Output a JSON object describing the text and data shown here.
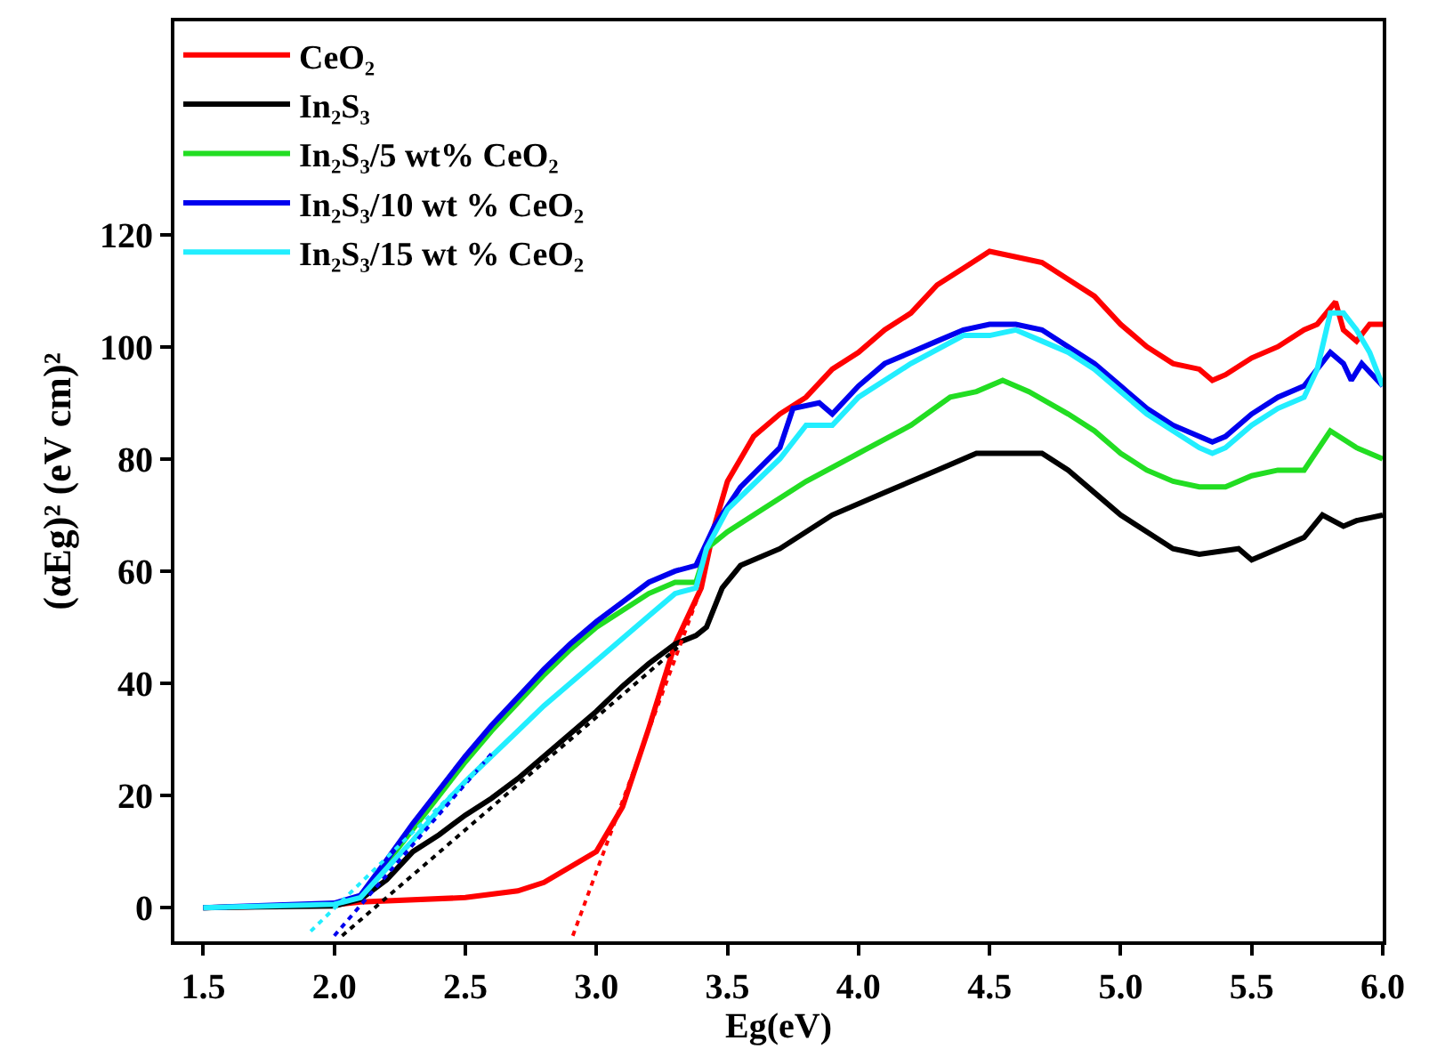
{
  "chart_data": {
    "type": "line",
    "xlabel": "Eg(eV)",
    "ylabel": "(αEg)² (eV cm)²",
    "xlim": [
      1.39,
      6.0
    ],
    "xticks": [
      {
        "value": 1.5,
        "label": "1.5"
      },
      {
        "value": 2.0,
        "label": "2.0"
      },
      {
        "value": 2.5,
        "label": "2.5"
      },
      {
        "value": 3.0,
        "label": "3.0"
      },
      {
        "value": 3.5,
        "label": "3.5"
      },
      {
        "value": 4.0,
        "label": "4.0"
      },
      {
        "value": 4.5,
        "label": "4.5"
      },
      {
        "value": 5.0,
        "label": "5.0"
      },
      {
        "value": 5.5,
        "label": "5.5"
      },
      {
        "value": 6.0,
        "label": "6.0"
      }
    ],
    "ylim": [
      -6,
      158
    ],
    "yticks": [
      0,
      20,
      40,
      60,
      80,
      100,
      120
    ],
    "legend": "top left",
    "marker": "none",
    "line_style": "solid",
    "series": [
      {
        "name": "CeO₂",
        "color": "#ff0000",
        "x": [
          1.5,
          2.0,
          2.1,
          2.5,
          2.7,
          2.8,
          3.0,
          3.1,
          3.2,
          3.3,
          3.4,
          3.45,
          3.5,
          3.6,
          3.7,
          3.8,
          3.9,
          4.0,
          4.1,
          4.2,
          4.3,
          4.4,
          4.5,
          4.6,
          4.7,
          4.8,
          4.9,
          5.0,
          5.1,
          5.2,
          5.3,
          5.35,
          5.4,
          5.5,
          5.6,
          5.7,
          5.75,
          5.82,
          5.85,
          5.9,
          5.95,
          6.0
        ],
        "values": [
          0,
          0.5,
          1,
          1.8,
          3,
          4.5,
          10,
          18,
          32,
          47,
          57,
          68,
          76,
          84,
          88,
          91,
          96,
          99,
          103,
          106,
          111,
          114,
          117,
          116,
          115,
          112,
          109,
          104,
          100,
          97,
          96,
          94,
          95,
          98,
          100,
          103,
          104,
          108,
          103,
          101,
          104,
          104
        ]
      },
      {
        "name": "In₂S₃",
        "color": "#000000",
        "x": [
          1.5,
          2.0,
          2.1,
          2.2,
          2.3,
          2.4,
          2.5,
          2.6,
          2.7,
          2.8,
          2.9,
          3.0,
          3.1,
          3.2,
          3.3,
          3.38,
          3.42,
          3.48,
          3.55,
          3.7,
          3.9,
          4.1,
          4.3,
          4.45,
          4.55,
          4.7,
          4.8,
          4.9,
          5.0,
          5.1,
          5.2,
          5.3,
          5.45,
          5.5,
          5.6,
          5.7,
          5.77,
          5.85,
          5.9,
          6.0
        ],
        "values": [
          0,
          0.3,
          1.5,
          5,
          10,
          13,
          16.5,
          19.5,
          23,
          27,
          31,
          35,
          39.5,
          43.5,
          47,
          48.5,
          50,
          57,
          61,
          64,
          70,
          74,
          78,
          81,
          81,
          81,
          78,
          74,
          70,
          67,
          64,
          63,
          64,
          62,
          64,
          66,
          70,
          68,
          69,
          70
        ]
      },
      {
        "name": "In₂S₃/5 wt% CeO₂",
        "color": "#22dd22",
        "x": [
          2.1,
          2.2,
          2.3,
          2.4,
          2.5,
          2.6,
          2.7,
          2.8,
          2.9,
          3.0,
          3.1,
          3.2,
          3.3,
          3.38,
          3.42,
          3.5,
          3.6,
          3.8,
          4.0,
          4.2,
          4.35,
          4.45,
          4.55,
          4.65,
          4.8,
          4.9,
          5.0,
          5.1,
          5.2,
          5.3,
          5.4,
          5.5,
          5.6,
          5.7,
          5.8,
          5.9,
          6.0
        ],
        "values": [
          2,
          8,
          14,
          20,
          26,
          31.5,
          36.5,
          41.5,
          46,
          50,
          53,
          56,
          58,
          58,
          64,
          67,
          70,
          76,
          81,
          86,
          91,
          92,
          94,
          92,
          88,
          85,
          81,
          78,
          76,
          75,
          75,
          77,
          78,
          78,
          85,
          82,
          80
        ]
      },
      {
        "name": "In₂S₃/10 wt % CeO₂",
        "color": "#0000ee",
        "x": [
          1.5,
          2.0,
          2.1,
          2.2,
          2.3,
          2.4,
          2.5,
          2.6,
          2.7,
          2.8,
          2.9,
          3.0,
          3.1,
          3.2,
          3.3,
          3.38,
          3.45,
          3.55,
          3.7,
          3.75,
          3.85,
          3.9,
          4.0,
          4.1,
          4.2,
          4.3,
          4.4,
          4.5,
          4.6,
          4.7,
          4.8,
          4.9,
          5.0,
          5.1,
          5.2,
          5.3,
          5.35,
          5.4,
          5.5,
          5.6,
          5.7,
          5.8,
          5.85,
          5.88,
          5.92,
          6.0
        ],
        "values": [
          0,
          0.8,
          2.2,
          8.5,
          15,
          21,
          27,
          32.5,
          37.5,
          42.5,
          47,
          51,
          54.5,
          58,
          60,
          61,
          68,
          75,
          82,
          89,
          90,
          88,
          93,
          97,
          99,
          101,
          103,
          104,
          104,
          103,
          100,
          97,
          93,
          89,
          86,
          84,
          83,
          84,
          88,
          91,
          93,
          99,
          97,
          94,
          97,
          93
        ]
      },
      {
        "name": "In₂S₃/15 wt % CeO₂",
        "color": "#22eeff",
        "x": [
          1.5,
          2.0,
          2.1,
          2.2,
          2.3,
          2.4,
          2.5,
          2.6,
          2.7,
          2.8,
          2.9,
          3.0,
          3.1,
          3.2,
          3.3,
          3.38,
          3.42,
          3.5,
          3.7,
          3.8,
          3.9,
          4.0,
          4.2,
          4.4,
          4.5,
          4.6,
          4.7,
          4.8,
          4.9,
          5.0,
          5.1,
          5.2,
          5.3,
          5.35,
          5.4,
          5.5,
          5.6,
          5.7,
          5.75,
          5.8,
          5.85,
          5.9,
          5.95,
          6.0
        ],
        "values": [
          0,
          0.6,
          1.8,
          7,
          12,
          17.5,
          22.5,
          27,
          31.5,
          36,
          40,
          44,
          48,
          52,
          56,
          57,
          64,
          71,
          80,
          86,
          86,
          91,
          97,
          102,
          102,
          103,
          101,
          99,
          96,
          92,
          88,
          85,
          82,
          81,
          82,
          86,
          89,
          91,
          96,
          106,
          106,
          103,
          99,
          93
        ]
      },
      {
        "color": "#ff0000",
        "line_style": "dotted",
        "x": [
          2.91,
          3.4
        ],
        "values": [
          -5,
          57
        ]
      },
      {
        "color": "#000000",
        "line_style": "dotted",
        "x": [
          2.03,
          3.31
        ],
        "values": [
          -5,
          46.4
        ]
      },
      {
        "color": "#0000ee",
        "line_style": "dotted",
        "x": [
          2.0,
          2.61
        ],
        "values": [
          -5,
          28
        ]
      },
      {
        "color": "#22eeff",
        "line_style": "dotted",
        "x": [
          1.91,
          2.61
        ],
        "values": [
          -4.2,
          27.5
        ]
      }
    ]
  }
}
